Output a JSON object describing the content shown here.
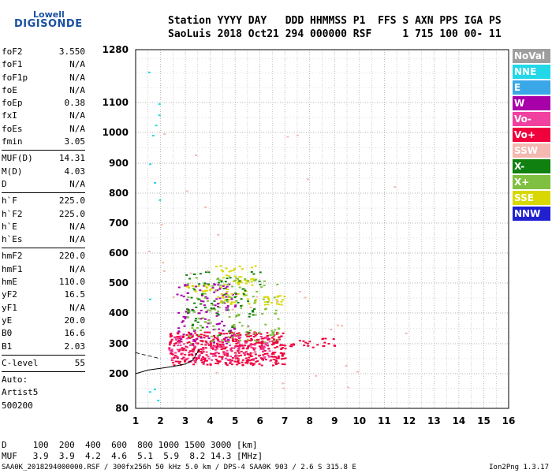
{
  "logo": {
    "line1": "Lowell",
    "line2": "DIGISONDE"
  },
  "header": {
    "line1": "Station YYYY DAY   DDD HHMMSS P1  FFS S AXN PPS IGA PS",
    "line2": "SaoLuis 2018 Oct21 294 000000 RSF     1 715 100 00- 11"
  },
  "params": [
    {
      "k": "foF2",
      "v": "3.550"
    },
    {
      "k": "foF1",
      "v": "N/A"
    },
    {
      "k": "foF1p",
      "v": "N/A"
    },
    {
      "k": "foE",
      "v": "N/A"
    },
    {
      "k": "foEp",
      "v": "0.38"
    },
    {
      "k": "fxI",
      "v": "N/A"
    },
    {
      "k": "foEs",
      "v": "N/A"
    },
    {
      "k": "fmin",
      "v": "3.05"
    },
    {
      "sep": true
    },
    {
      "k": "MUF(D)",
      "v": "14.31"
    },
    {
      "k": "M(D)",
      "v": "4.03"
    },
    {
      "k": "D",
      "v": "N/A"
    },
    {
      "sep": true
    },
    {
      "k": "h`F",
      "v": "225.0"
    },
    {
      "k": "h`F2",
      "v": "225.0"
    },
    {
      "k": "h`E",
      "v": "N/A"
    },
    {
      "k": "h`Es",
      "v": "N/A"
    },
    {
      "sep": true
    },
    {
      "k": "hmF2",
      "v": "220.0"
    },
    {
      "k": "hmF1",
      "v": "N/A"
    },
    {
      "k": "hmE",
      "v": "110.0"
    },
    {
      "k": "yF2",
      "v": "16.5"
    },
    {
      "k": "yF1",
      "v": "N/A"
    },
    {
      "k": "yE",
      "v": "20.0"
    },
    {
      "k": "B0",
      "v": "16.6"
    },
    {
      "k": "B1",
      "v": "2.03"
    },
    {
      "sep": true
    },
    {
      "k": "C-level",
      "v": "55"
    },
    {
      "sep": true
    },
    {
      "text": "Auto:"
    },
    {
      "text": "Artist5"
    },
    {
      "text": "500200"
    }
  ],
  "legend": [
    {
      "label": "NoVal",
      "color": "#9e9e9e"
    },
    {
      "label": "NNE",
      "color": "#22d8e8"
    },
    {
      "label": "E",
      "color": "#3aa8e8"
    },
    {
      "label": "W",
      "color": "#a800a8"
    },
    {
      "label": "Vo-",
      "color": "#f040a0"
    },
    {
      "label": "Vo+",
      "color": "#f0003c"
    },
    {
      "label": "SSW",
      "color": "#f5b8b0"
    },
    {
      "label": "X-",
      "color": "#108010"
    },
    {
      "label": "X+",
      "color": "#80c040"
    },
    {
      "label": "SSE",
      "color": "#d8d800"
    },
    {
      "label": "NNW",
      "color": "#2020d0"
    }
  ],
  "chart_data": {
    "type": "scatter",
    "x_ticks": [
      "1",
      "2",
      "3",
      "4",
      "5",
      "6",
      "7",
      "8",
      "9",
      "10",
      "11",
      "12",
      "13",
      "14",
      "15",
      "16"
    ],
    "y_ticks": [
      "80",
      "200",
      "300",
      "400",
      "500",
      "600",
      "700",
      "800",
      "900",
      "1000",
      "1100",
      "1280"
    ],
    "xlim": [
      1,
      16
    ],
    "ylim": [
      80,
      1280
    ],
    "grid": true,
    "legend_position": "right",
    "trace": {
      "name": "",
      "x": [
        1.0,
        1.5,
        2.0,
        2.5,
        3.0,
        3.3,
        3.55
      ],
      "y": [
        200,
        212,
        218,
        224,
        232,
        245,
        280
      ]
    },
    "echo_clusters": [
      {
        "channel": "Vo+",
        "x0": 2.3,
        "x1": 7.0,
        "y0": 230,
        "y1": 340,
        "density": 0.45
      },
      {
        "channel": "Vo-",
        "x0": 2.3,
        "x1": 6.5,
        "y0": 240,
        "y1": 330,
        "density": 0.15
      },
      {
        "channel": "W",
        "x0": 2.6,
        "x1": 5.0,
        "y0": 300,
        "y1": 500,
        "density": 0.12
      },
      {
        "channel": "SSE",
        "x0": 3.0,
        "x1": 4.0,
        "y0": 470,
        "y1": 500,
        "density": 0.3
      },
      {
        "channel": "SSE",
        "x0": 4.2,
        "x1": 5.8,
        "y0": 420,
        "y1": 560,
        "density": 0.15
      },
      {
        "channel": "SSE",
        "x0": 6.0,
        "x1": 7.0,
        "y0": 430,
        "y1": 460,
        "density": 0.35
      },
      {
        "channel": "X+",
        "x0": 3.0,
        "x1": 6.8,
        "y0": 300,
        "y1": 520,
        "density": 0.08
      },
      {
        "channel": "X-",
        "x0": 3.0,
        "x1": 6.0,
        "y0": 330,
        "y1": 560,
        "density": 0.05
      },
      {
        "channel": "Vo+",
        "x0": 7.0,
        "x1": 9.0,
        "y0": 290,
        "y1": 320,
        "density": 0.2
      },
      {
        "channel": "SSW",
        "x0": 1.5,
        "x1": 12.0,
        "y0": 150,
        "y1": 1000,
        "density": 0.002
      },
      {
        "channel": "NNE",
        "x0": 1.5,
        "x1": 2.0,
        "y0": 90,
        "y1": 1280,
        "density": 0.01
      }
    ]
  },
  "dmuf": {
    "d_line": "D     100  200  400  600  800 1000 1500 3000 [km]",
    "muf_line": "MUF   3.9  3.9  4.2  4.6  5.1  5.9  8.2 14.3 [MHz]"
  },
  "footer": "SAA0K_2018294000000.RSF / 300fx256h 50 kHz 5.0 km / DPS-4 SAA0K 903 / 2.6 S 315.8 E",
  "version": "Ion2Png 1.3.17"
}
